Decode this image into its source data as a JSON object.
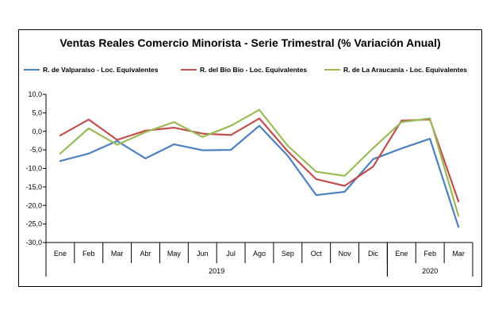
{
  "chart_data": {
    "type": "line",
    "title": "Ventas Reales Comercio Minorista - Serie Trimestral (% Variación Anual)",
    "categories": [
      "Ene",
      "Feb",
      "Mar",
      "Abr",
      "May",
      "Jun",
      "Jul",
      "Ago",
      "Sep",
      "Oct",
      "Nov",
      "Dic",
      "Ene",
      "Feb",
      "Mar"
    ],
    "year_groups": [
      {
        "label": "2019",
        "start": 0,
        "end": 11
      },
      {
        "label": "2020",
        "start": 12,
        "end": 14
      }
    ],
    "ylim": [
      -30,
      10
    ],
    "yticks": [
      "10,0",
      "5,0",
      "0,0",
      "-5,0",
      "-10,0",
      "-15,0",
      "-20,0",
      "-25,0",
      "-30,0"
    ],
    "ytick_values": [
      10,
      5,
      0,
      -5,
      -10,
      -15,
      -20,
      -25,
      -30
    ],
    "xlabel": "",
    "ylabel": "",
    "legend_position": "top",
    "series": [
      {
        "name": "R. de Valparaíso - Loc. Equivalentes",
        "color": "#4f81bd",
        "values": [
          -8.0,
          -6.0,
          -2.6,
          -7.3,
          -3.5,
          -5.1,
          -5.0,
          1.5,
          -6.6,
          -17.2,
          -16.3,
          -7.5,
          -4.6,
          -2.0,
          -25.8
        ]
      },
      {
        "name": "R. del Bio Bio - Loc. Equivalentes",
        "color": "#c0504d",
        "values": [
          -1.1,
          3.2,
          -2.3,
          0.2,
          1.0,
          -0.6,
          -1.0,
          3.5,
          -5.4,
          -12.9,
          -14.7,
          -9.5,
          2.9,
          3.2,
          -18.9
        ]
      },
      {
        "name": "R. de La Araucanía - Loc. Equivalentes",
        "color": "#9bbb59",
        "values": [
          -6.0,
          0.8,
          -3.6,
          -0.2,
          2.5,
          -1.5,
          1.5,
          5.8,
          -3.9,
          -10.9,
          -12.0,
          -4.5,
          2.5,
          3.5,
          -22.8
        ]
      }
    ]
  }
}
